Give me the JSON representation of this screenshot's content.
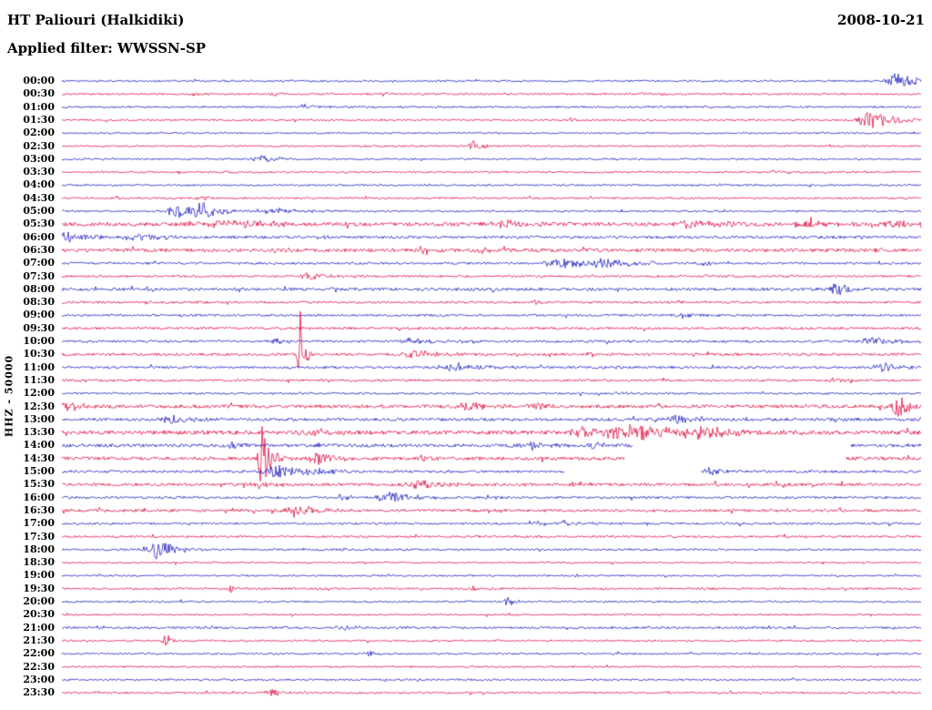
{
  "header": {
    "title": "HT Paliouri (Halkidiki)",
    "date": "2008-10-21",
    "filter": "Applied filter: WWSSN-SP"
  },
  "y_axis": {
    "label": "HHZ - 50000"
  },
  "colors": {
    "blue": "#1f1fc3",
    "red": "#e01244",
    "text": "#000000",
    "background": "#ffffff"
  },
  "chart_data": {
    "type": "line",
    "subtype": "helicorder-seismogram",
    "station": "HT Paliouri (Halkidiki)",
    "channel_scale": "HHZ - 50000",
    "date": "2008-10-21",
    "filter": "WWSSN-SP",
    "minutes_per_row": 30,
    "legend": "alternating blue/red 30-minute traces, amplitudes in pixels, event x as fraction of row width",
    "rows": [
      {
        "time": "00:00",
        "color": "blue",
        "noise": 1.0,
        "events": [
          {
            "x": 0.975,
            "amp": 9,
            "w": 0.02
          }
        ]
      },
      {
        "time": "00:30",
        "color": "red",
        "noise": 1.0,
        "events": [
          {
            "x": 0.156,
            "amp": 2.5,
            "w": 0.004
          },
          {
            "x": 0.246,
            "amp": 2.5,
            "w": 0.004
          },
          {
            "x": 0.373,
            "amp": 2.5,
            "w": 0.004
          }
        ]
      },
      {
        "time": "01:00",
        "color": "blue",
        "noise": 1.0,
        "events": [
          {
            "x": 0.283,
            "amp": 3,
            "w": 0.012
          }
        ]
      },
      {
        "time": "01:30",
        "color": "red",
        "noise": 1.0,
        "events": [
          {
            "x": 0.593,
            "amp": 3,
            "w": 0.004
          },
          {
            "x": 0.943,
            "amp": 10,
            "w": 0.022
          }
        ]
      },
      {
        "time": "02:00",
        "color": "blue",
        "noise": 0.9,
        "events": []
      },
      {
        "time": "02:30",
        "color": "red",
        "noise": 0.9,
        "events": [
          {
            "x": 0.479,
            "amp": 9,
            "w": 0.005
          }
        ]
      },
      {
        "time": "03:00",
        "color": "blue",
        "noise": 1.0,
        "events": [
          {
            "x": 0.235,
            "amp": 4.5,
            "w": 0.018
          }
        ]
      },
      {
        "time": "03:30",
        "color": "red",
        "noise": 1.0,
        "events": [
          {
            "x": 0.83,
            "amp": 2,
            "w": 0.004
          }
        ]
      },
      {
        "time": "04:00",
        "color": "blue",
        "noise": 1.0,
        "events": [
          {
            "x": 0.73,
            "amp": 2,
            "w": 0.004
          }
        ]
      },
      {
        "time": "04:30",
        "color": "red",
        "noise": 1.0,
        "events": [
          {
            "x": 0.064,
            "amp": 2.5,
            "w": 0.004
          },
          {
            "x": 0.166,
            "amp": 2,
            "w": 0.004
          }
        ]
      },
      {
        "time": "05:00",
        "color": "blue",
        "noise": 1.0,
        "events": [
          {
            "x": 0.131,
            "amp": 13,
            "w": 0.008
          },
          {
            "x": 0.162,
            "amp": 11,
            "w": 0.018
          },
          {
            "x": 0.25,
            "amp": 3,
            "w": 0.04
          }
        ]
      },
      {
        "time": "05:30",
        "color": "red",
        "noise": 2.2,
        "events": [
          {
            "x": 0.2,
            "amp": 4,
            "w": 0.05
          },
          {
            "x": 0.52,
            "amp": 3,
            "w": 0.03
          },
          {
            "x": 0.74,
            "amp": 4,
            "w": 0.04
          },
          {
            "x": 0.87,
            "amp": 3.5,
            "w": 0.03
          },
          {
            "x": 0.97,
            "amp": 3,
            "w": 0.02
          }
        ]
      },
      {
        "time": "06:00",
        "color": "blue",
        "noise": 1.5,
        "events": [
          {
            "x": 0.01,
            "amp": 5,
            "w": 0.03
          },
          {
            "x": 0.09,
            "amp": 4,
            "w": 0.025
          },
          {
            "x": 0.3,
            "amp": 2.5,
            "w": 0.01
          }
        ]
      },
      {
        "time": "06:30",
        "color": "red",
        "noise": 1.8,
        "events": [
          {
            "x": 0.25,
            "amp": 3,
            "w": 0.01
          },
          {
            "x": 0.42,
            "amp": 3,
            "w": 0.012
          },
          {
            "x": 0.49,
            "amp": 3,
            "w": 0.01
          },
          {
            "x": 0.95,
            "amp": 2.5,
            "w": 0.01
          }
        ]
      },
      {
        "time": "07:00",
        "color": "blue",
        "noise": 1.2,
        "events": [
          {
            "x": 0.583,
            "amp": 5,
            "w": 0.03
          },
          {
            "x": 0.627,
            "amp": 6,
            "w": 0.035
          },
          {
            "x": 0.75,
            "amp": 2.5,
            "w": 0.01
          }
        ]
      },
      {
        "time": "07:30",
        "color": "red",
        "noise": 1.2,
        "events": [
          {
            "x": 0.288,
            "amp": 4.5,
            "w": 0.015
          },
          {
            "x": 0.75,
            "amp": 2.5,
            "w": 0.008
          }
        ]
      },
      {
        "time": "08:00",
        "color": "blue",
        "noise": 1.6,
        "events": [
          {
            "x": 0.1,
            "amp": 2.5,
            "w": 0.01
          },
          {
            "x": 0.3,
            "amp": 3,
            "w": 0.01
          },
          {
            "x": 0.903,
            "amp": 10,
            "w": 0.008
          }
        ]
      },
      {
        "time": "08:30",
        "color": "red",
        "noise": 1.2,
        "events": [
          {
            "x": 0.55,
            "amp": 2.5,
            "w": 0.01
          }
        ]
      },
      {
        "time": "09:00",
        "color": "blue",
        "noise": 1.2,
        "events": [
          {
            "x": 0.72,
            "amp": 3.5,
            "w": 0.012
          }
        ]
      },
      {
        "time": "09:30",
        "color": "red",
        "noise": 1.3,
        "events": [
          {
            "x": 0.277,
            "amp": 3,
            "w": 0.004
          }
        ]
      },
      {
        "time": "10:00",
        "color": "blue",
        "noise": 1.3,
        "events": [
          {
            "x": 0.25,
            "amp": 2.5,
            "w": 0.008
          },
          {
            "x": 0.41,
            "amp": 4,
            "w": 0.02
          },
          {
            "x": 0.947,
            "amp": 5,
            "w": 0.025
          }
        ]
      },
      {
        "time": "10:30",
        "color": "red",
        "noise": 1.4,
        "events": [
          {
            "x": 0.2775,
            "amp": 48,
            "w": 0.0018
          },
          {
            "x": 0.41,
            "amp": 5,
            "w": 0.025
          },
          {
            "x": 0.62,
            "amp": 3,
            "w": 0.01
          }
        ]
      },
      {
        "time": "11:00",
        "color": "blue",
        "noise": 1.3,
        "events": [
          {
            "x": 0.463,
            "amp": 5,
            "w": 0.03
          },
          {
            "x": 0.96,
            "amp": 4.5,
            "w": 0.02
          }
        ]
      },
      {
        "time": "11:30",
        "color": "red",
        "noise": 1.2,
        "events": [
          {
            "x": 0.3,
            "amp": 2,
            "w": 0.006
          },
          {
            "x": 0.9,
            "amp": 3,
            "w": 0.008
          }
        ]
      },
      {
        "time": "12:00",
        "color": "blue",
        "noise": 1.1,
        "events": [
          {
            "x": 0.65,
            "amp": 2,
            "w": 0.006
          }
        ]
      },
      {
        "time": "12:30",
        "color": "red",
        "noise": 1.8,
        "events": [
          {
            "x": 0.008,
            "amp": 6,
            "w": 0.012
          },
          {
            "x": 0.475,
            "amp": 4,
            "w": 0.025
          },
          {
            "x": 0.55,
            "amp": 3,
            "w": 0.02
          },
          {
            "x": 0.975,
            "amp": 13,
            "w": 0.012
          }
        ]
      },
      {
        "time": "13:00",
        "color": "blue",
        "noise": 1.6,
        "events": [
          {
            "x": 0.129,
            "amp": 5,
            "w": 0.02
          },
          {
            "x": 0.717,
            "amp": 5,
            "w": 0.015
          },
          {
            "x": 0.9,
            "amp": 2.5,
            "w": 0.01
          }
        ]
      },
      {
        "time": "13:30",
        "color": "red",
        "noise": 2.2,
        "events": [
          {
            "x": 0.3,
            "amp": 3,
            "w": 0.02
          },
          {
            "x": 0.606,
            "amp": 5,
            "w": 0.02
          },
          {
            "x": 0.669,
            "amp": 9,
            "w": 0.05
          },
          {
            "x": 0.75,
            "amp": 6,
            "w": 0.03
          }
        ]
      },
      {
        "time": "14:00",
        "color": "blue",
        "noise": 1.8,
        "gaps": [
          [
            0.665,
            0.918
          ]
        ],
        "events": [
          {
            "x": 0.2,
            "amp": 3,
            "w": 0.015
          },
          {
            "x": 0.55,
            "amp": 3,
            "w": 0.02
          },
          {
            "x": 0.62,
            "amp": 4,
            "w": 0.01
          }
        ]
      },
      {
        "time": "14:30",
        "color": "red",
        "noise": 1.8,
        "gaps": [
          [
            0.655,
            0.912
          ]
        ],
        "events": [
          {
            "x": 0.234,
            "amp": 45,
            "w": 0.006
          },
          {
            "x": 0.3,
            "amp": 6,
            "w": 0.02
          },
          {
            "x": 0.42,
            "amp": 3,
            "w": 0.01
          }
        ]
      },
      {
        "time": "15:00",
        "color": "blue",
        "noise": 1.4,
        "gaps": [
          [
            0.585,
            0.744
          ]
        ],
        "events": [
          {
            "x": 0.256,
            "amp": 7,
            "w": 0.03
          },
          {
            "x": 0.3,
            "amp": 4,
            "w": 0.02
          },
          {
            "x": 0.754,
            "amp": 4,
            "w": 0.015
          }
        ]
      },
      {
        "time": "15:30",
        "color": "red",
        "noise": 1.6,
        "events": [
          {
            "x": 0.23,
            "amp": 4,
            "w": 0.01
          },
          {
            "x": 0.42,
            "amp": 4,
            "w": 0.03
          },
          {
            "x": 0.6,
            "amp": 3,
            "w": 0.015
          }
        ]
      },
      {
        "time": "16:00",
        "color": "blue",
        "noise": 1.3,
        "events": [
          {
            "x": 0.322,
            "amp": 4,
            "w": 0.01
          },
          {
            "x": 0.386,
            "amp": 6,
            "w": 0.025
          },
          {
            "x": 0.5,
            "amp": 3,
            "w": 0.01
          }
        ]
      },
      {
        "time": "16:30",
        "color": "red",
        "noise": 1.5,
        "events": [
          {
            "x": 0.2775,
            "amp": 5,
            "w": 0.025
          },
          {
            "x": 0.5,
            "amp": 2.5,
            "w": 0.01
          }
        ]
      },
      {
        "time": "17:00",
        "color": "blue",
        "noise": 1.2,
        "events": [
          {
            "x": 0.55,
            "amp": 3,
            "w": 0.012
          },
          {
            "x": 0.585,
            "amp": 3,
            "w": 0.01
          }
        ]
      },
      {
        "time": "17:30",
        "color": "red",
        "noise": 1.1,
        "events": [
          {
            "x": 0.35,
            "amp": 2,
            "w": 0.006
          }
        ]
      },
      {
        "time": "18:00",
        "color": "blue",
        "noise": 1.1,
        "events": [
          {
            "x": 0.113,
            "amp": 10,
            "w": 0.02
          }
        ]
      },
      {
        "time": "18:30",
        "color": "red",
        "noise": 0.9,
        "events": []
      },
      {
        "time": "19:00",
        "color": "blue",
        "noise": 0.9,
        "events": [
          {
            "x": 0.6,
            "amp": 1.5,
            "w": 0.005
          }
        ]
      },
      {
        "time": "19:30",
        "color": "red",
        "noise": 1.1,
        "events": [
          {
            "x": 0.198,
            "amp": 4,
            "w": 0.006
          },
          {
            "x": 0.479,
            "amp": 3,
            "w": 0.005
          }
        ]
      },
      {
        "time": "20:00",
        "color": "blue",
        "noise": 1.0,
        "events": [
          {
            "x": 0.521,
            "amp": 6,
            "w": 0.006
          }
        ]
      },
      {
        "time": "20:30",
        "color": "red",
        "noise": 0.9,
        "events": []
      },
      {
        "time": "21:00",
        "color": "blue",
        "noise": 1.2,
        "events": [
          {
            "x": 0.33,
            "amp": 4,
            "w": 0.008
          }
        ]
      },
      {
        "time": "21:30",
        "color": "red",
        "noise": 1.0,
        "events": [
          {
            "x": 0.122,
            "amp": 7,
            "w": 0.005
          }
        ]
      },
      {
        "time": "22:00",
        "color": "blue",
        "noise": 1.0,
        "events": [
          {
            "x": 0.357,
            "amp": 4,
            "w": 0.005
          }
        ]
      },
      {
        "time": "22:30",
        "color": "red",
        "noise": 0.9,
        "events": []
      },
      {
        "time": "23:00",
        "color": "blue",
        "noise": 1.0,
        "events": [
          {
            "x": 0.85,
            "amp": 1.5,
            "w": 0.005
          }
        ]
      },
      {
        "time": "23:30",
        "color": "red",
        "noise": 1.0,
        "events": [
          {
            "x": 0.246,
            "amp": 4,
            "w": 0.01
          }
        ]
      }
    ]
  }
}
